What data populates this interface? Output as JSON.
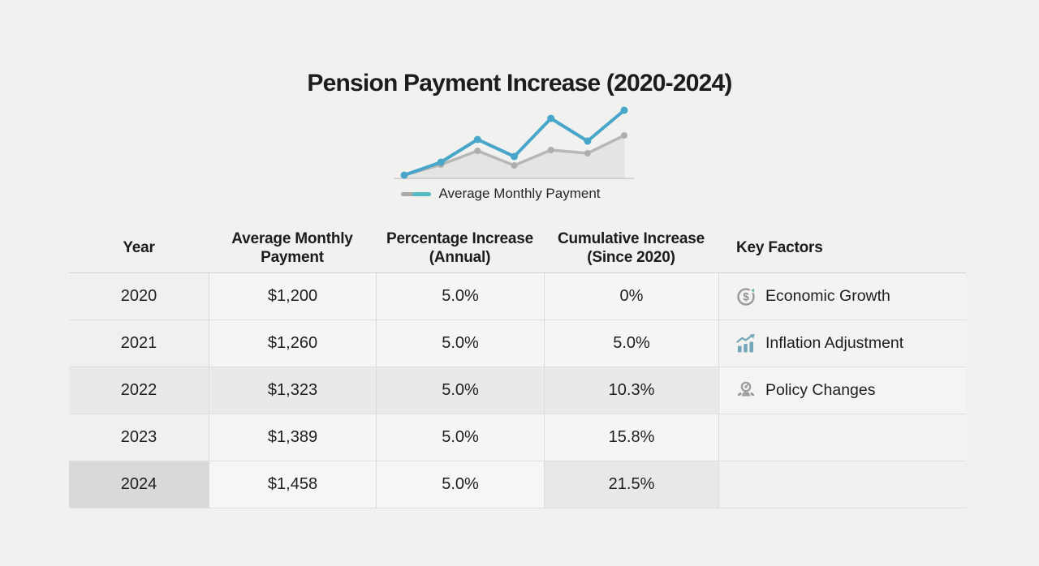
{
  "page": {
    "title": "Pension Payment Increase (2020-2024)"
  },
  "colors": {
    "background": "#f1f1ef",
    "title_text": "#1c1c1c",
    "body_text": "#1e1e1e",
    "accent_blue": "#47a6c9",
    "legend_teal": "#54bac4",
    "line_gray": "#b7b7b5",
    "area_gray": "#e4e4e2",
    "baseline_gray": "#c8c8c6",
    "icon_gray": "#9b9b99",
    "icon_blue": "#74a7ba",
    "icon_green": "#55b3a2"
  },
  "chart": {
    "legend_label": "Average Monthly Payment"
  },
  "chart_data": [
    {
      "type": "line",
      "title": "Pension Payment Increase (2020-2024)",
      "legend": [
        "Average Monthly Payment"
      ],
      "legend_position": "bottom",
      "axes_visible": false,
      "x": [
        0,
        1,
        2,
        3,
        4,
        5,
        6
      ],
      "ylim": [
        0,
        100
      ],
      "series": [
        {
          "name": "highlighted-payment-line",
          "color": "#47a6c9",
          "values": [
            4,
            20,
            48,
            27,
            74,
            46,
            84
          ]
        },
        {
          "name": "base-payment-line",
          "color": "#b7b7b5",
          "area_fill": "#e4e4e2",
          "values": [
            4,
            17,
            34,
            16,
            35,
            31,
            53
          ]
        }
      ]
    },
    {
      "type": "table",
      "columns": [
        "Year",
        "Average Monthly Payment",
        "Percentage Increase (Annual)",
        "Cumulative Increase (Since 2020)",
        "Key Factors"
      ],
      "rows": [
        [
          "2020",
          "$1,200",
          "5.0%",
          "0%",
          "Economic Growth"
        ],
        [
          "2021",
          "$1,260",
          "5.0%",
          "5.0%",
          "Inflation Adjustment"
        ],
        [
          "2022",
          "$1,323",
          "5.0%",
          "10.3%",
          "Policy Changes"
        ],
        [
          "2023",
          "$1,389",
          "5.0%",
          "15.8%",
          ""
        ],
        [
          "2024",
          "$1,458",
          "5.0%",
          "21.5%",
          ""
        ]
      ]
    }
  ],
  "table": {
    "columns": {
      "year": "Year",
      "payment": "Average Monthly Payment",
      "annual": "Percentage Increase (Annual)",
      "cumulative": "Cumulative Increase (Since 2020)",
      "key_factors": "Key Factors"
    },
    "rows": [
      {
        "year": "2020",
        "payment": "$1,200",
        "annual_increase": "5.0%",
        "cumulative_increase": "0%",
        "key_factor": "Economic Growth"
      },
      {
        "year": "2021",
        "payment": "$1,260",
        "annual_increase": "5.0%",
        "cumulative_increase": "5.0%",
        "key_factor": "Inflation Adjustment"
      },
      {
        "year": "2022",
        "payment": "$1,323",
        "annual_increase": "5.0%",
        "cumulative_increase": "10.3%",
        "key_factor": "Policy Changes"
      },
      {
        "year": "2023",
        "payment": "$1,389",
        "annual_increase": "5.0%",
        "cumulative_increase": "15.8%",
        "key_factor": ""
      },
      {
        "year": "2024",
        "payment": "$1,458",
        "annual_increase": "5.0%",
        "cumulative_increase": "21.5%",
        "key_factor": ""
      }
    ]
  }
}
